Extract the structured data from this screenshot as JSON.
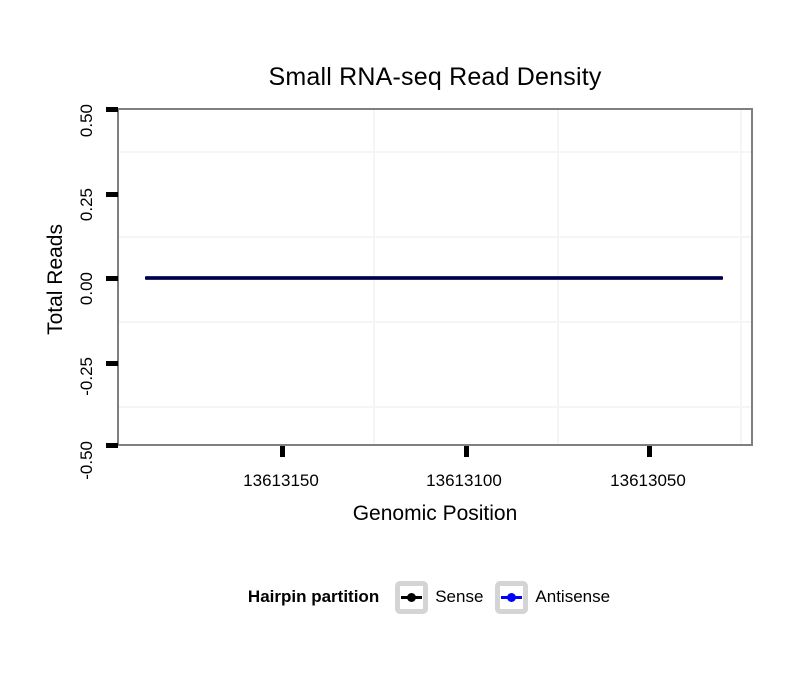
{
  "title": "Small RNA-seq Read Density",
  "axes": {
    "x": {
      "label": "Genomic Position",
      "ticks": [
        "13613150",
        "13613100",
        "13613050"
      ]
    },
    "y": {
      "label": "Total Reads",
      "ticks": [
        "0.50",
        "0.25",
        "0.00",
        "-0.25",
        "-0.50"
      ]
    }
  },
  "legend": {
    "title": "Hairpin partition",
    "items": [
      {
        "label": "Sense",
        "color": "#000000"
      },
      {
        "label": "Antisense",
        "color": "#0000ff"
      }
    ]
  },
  "colors": {
    "panel_border": "#7f7f7f",
    "gridline": "#f5f5f5",
    "tick": "#000000",
    "overplotted_line": "#0a0a30",
    "legend_key_frame": "#d4d4d4",
    "background": "#ffffff"
  },
  "chart_data": {
    "type": "line",
    "title": "Small RNA-seq Read Density",
    "xlabel": "Genomic Position",
    "ylabel": "Total Reads",
    "x_ticks": [
      13613150,
      13613100,
      13613050
    ],
    "y_ticks": [
      0.5,
      0.25,
      0.0,
      -0.25,
      -0.5
    ],
    "xlim": [
      13613195,
      13613022
    ],
    "x_reversed": true,
    "ylim": [
      -0.5,
      0.5
    ],
    "grid": "minor-only",
    "legend_title": "Hairpin partition",
    "legend_position": "bottom",
    "series": [
      {
        "name": "Sense",
        "color": "#000000",
        "x": [
          13613187,
          13613030
        ],
        "y": [
          0,
          0
        ]
      },
      {
        "name": "Antisense",
        "color": "#0000ff",
        "x": [
          13613187,
          13613030
        ],
        "y": [
          0,
          0
        ]
      }
    ]
  }
}
